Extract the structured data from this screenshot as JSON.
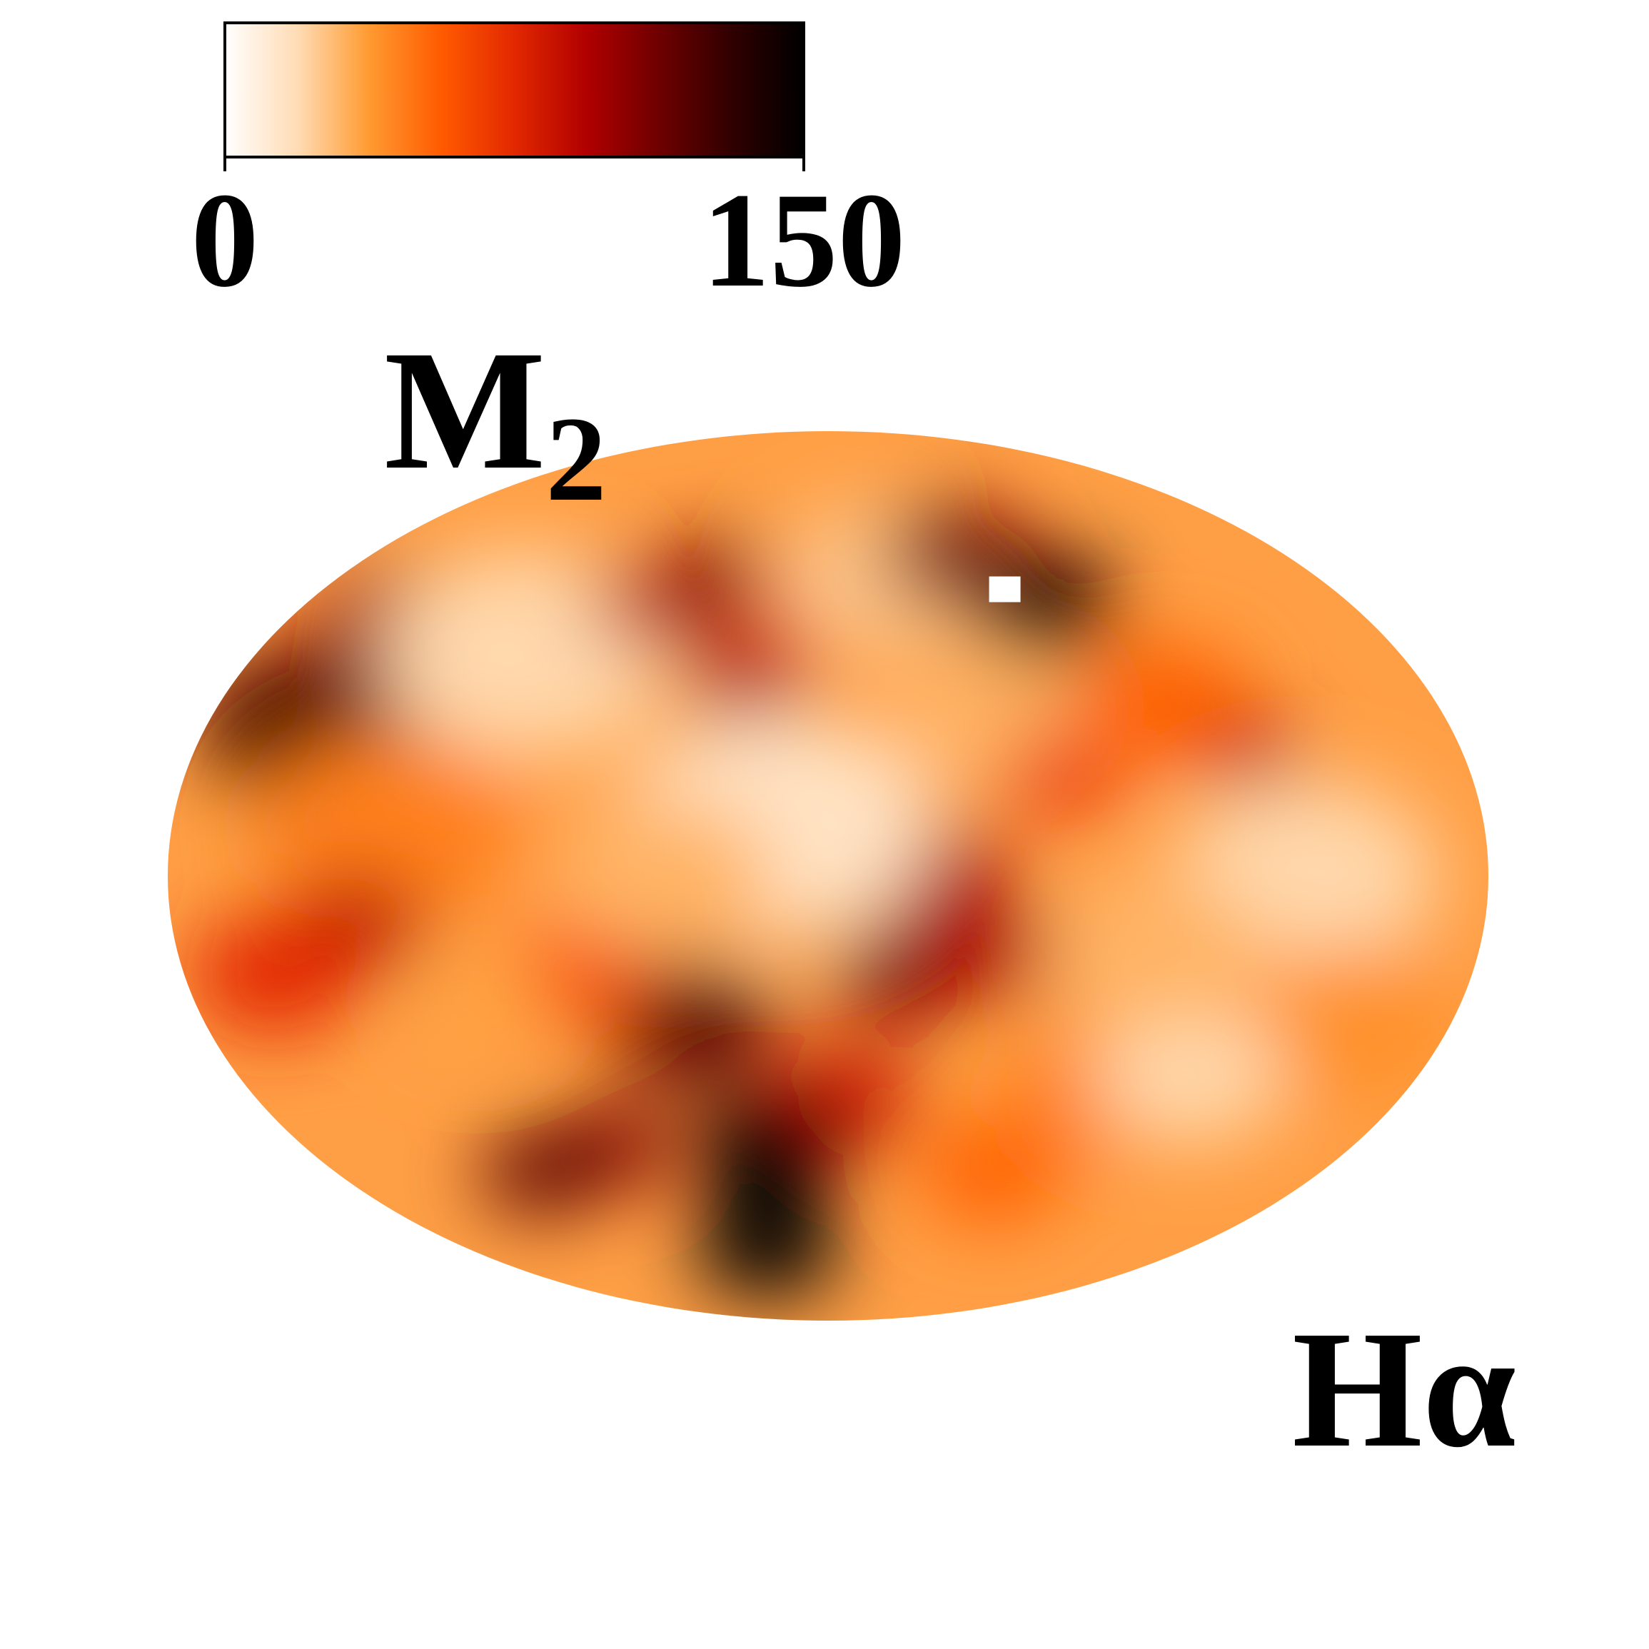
{
  "chart_data": {
    "type": "heatmap",
    "projection": "mollweide",
    "title": "",
    "panel_label": "M",
    "panel_label_subscript": "2",
    "corner_label": "Hα",
    "colorbar": {
      "orientation": "horizontal",
      "placement": "top-left",
      "min": 0,
      "max": 150,
      "tick_labels": [
        "0",
        "150"
      ],
      "colormap": [
        "#ffffff",
        "#ffdcb5",
        "#ff9a30",
        "#ff5a00",
        "#e22800",
        "#b00000",
        "#6e0000",
        "#300000",
        "#000000"
      ]
    },
    "features": [
      {
        "lon": -150,
        "lat": 30,
        "value": 125,
        "size": 0.9
      },
      {
        "lon": -140,
        "lat": 50,
        "value": 100,
        "size": 0.7
      },
      {
        "lon": -120,
        "lat": 10,
        "value": 45,
        "size": 1.1
      },
      {
        "lon": -95,
        "lat": 45,
        "value": 20,
        "size": 1.2
      },
      {
        "lon": -60,
        "lat": 55,
        "value": 90,
        "size": 0.5
      },
      {
        "lon": -40,
        "lat": 60,
        "value": 115,
        "size": 0.45
      },
      {
        "lon": -25,
        "lat": 40,
        "value": 95,
        "size": 0.5
      },
      {
        "lon": -5,
        "lat": 55,
        "value": 70,
        "size": 0.6
      },
      {
        "lon": 20,
        "lat": 60,
        "value": 25,
        "size": 0.9
      },
      {
        "lon": 50,
        "lat": 65,
        "value": 110,
        "size": 0.6
      },
      {
        "lon": 45,
        "lat": 30,
        "value": 30,
        "size": 0.8
      },
      {
        "lon": 75,
        "lat": 55,
        "value": 140,
        "size": 0.6
      },
      {
        "lon": 65,
        "lat": 20,
        "value": 70,
        "size": 0.5
      },
      {
        "lon": 100,
        "lat": 35,
        "value": 55,
        "size": 0.7
      },
      {
        "lon": 120,
        "lat": 25,
        "value": 90,
        "size": 0.4
      },
      {
        "lon": 130,
        "lat": 0,
        "value": 20,
        "size": 1.1
      },
      {
        "lon": 150,
        "lat": -30,
        "value": 40,
        "size": 0.9
      },
      {
        "lon": 30,
        "lat": 0,
        "value": 95,
        "size": 0.6
      },
      {
        "lon": 20,
        "lat": -20,
        "value": 110,
        "size": 0.55
      },
      {
        "lon": 45,
        "lat": -15,
        "value": 95,
        "size": 0.55
      },
      {
        "lon": 5,
        "lat": -45,
        "value": 85,
        "size": 0.6
      },
      {
        "lon": -15,
        "lat": 10,
        "value": 15,
        "size": 1.3
      },
      {
        "lon": -40,
        "lat": -30,
        "value": 120,
        "size": 0.7
      },
      {
        "lon": -20,
        "lat": -55,
        "value": 150,
        "size": 0.65
      },
      {
        "lon": -30,
        "lat": -75,
        "value": 150,
        "size": 0.6
      },
      {
        "lon": -75,
        "lat": -55,
        "value": 110,
        "size": 0.5
      },
      {
        "lon": -105,
        "lat": -60,
        "value": 120,
        "size": 0.5
      },
      {
        "lon": -70,
        "lat": -20,
        "value": 60,
        "size": 0.6
      },
      {
        "lon": -130,
        "lat": -10,
        "value": 90,
        "size": 0.6
      },
      {
        "lon": -155,
        "lat": -20,
        "value": 75,
        "size": 0.7
      },
      {
        "lon": -100,
        "lat": -25,
        "value": 35,
        "size": 0.6
      },
      {
        "lon": 80,
        "lat": -45,
        "value": 45,
        "size": 0.7
      },
      {
        "lon": 110,
        "lat": -40,
        "value": 20,
        "size": 0.8
      },
      {
        "lon": 90,
        "lat": -15,
        "value": 30,
        "size": 0.9
      },
      {
        "lon": 60,
        "lat": -60,
        "value": 55,
        "size": 0.6
      },
      {
        "lon": -45,
        "lat": 0,
        "value": 30,
        "size": 0.9
      }
    ],
    "masked_pixel": {
      "lon": 63,
      "lat": 58
    }
  }
}
